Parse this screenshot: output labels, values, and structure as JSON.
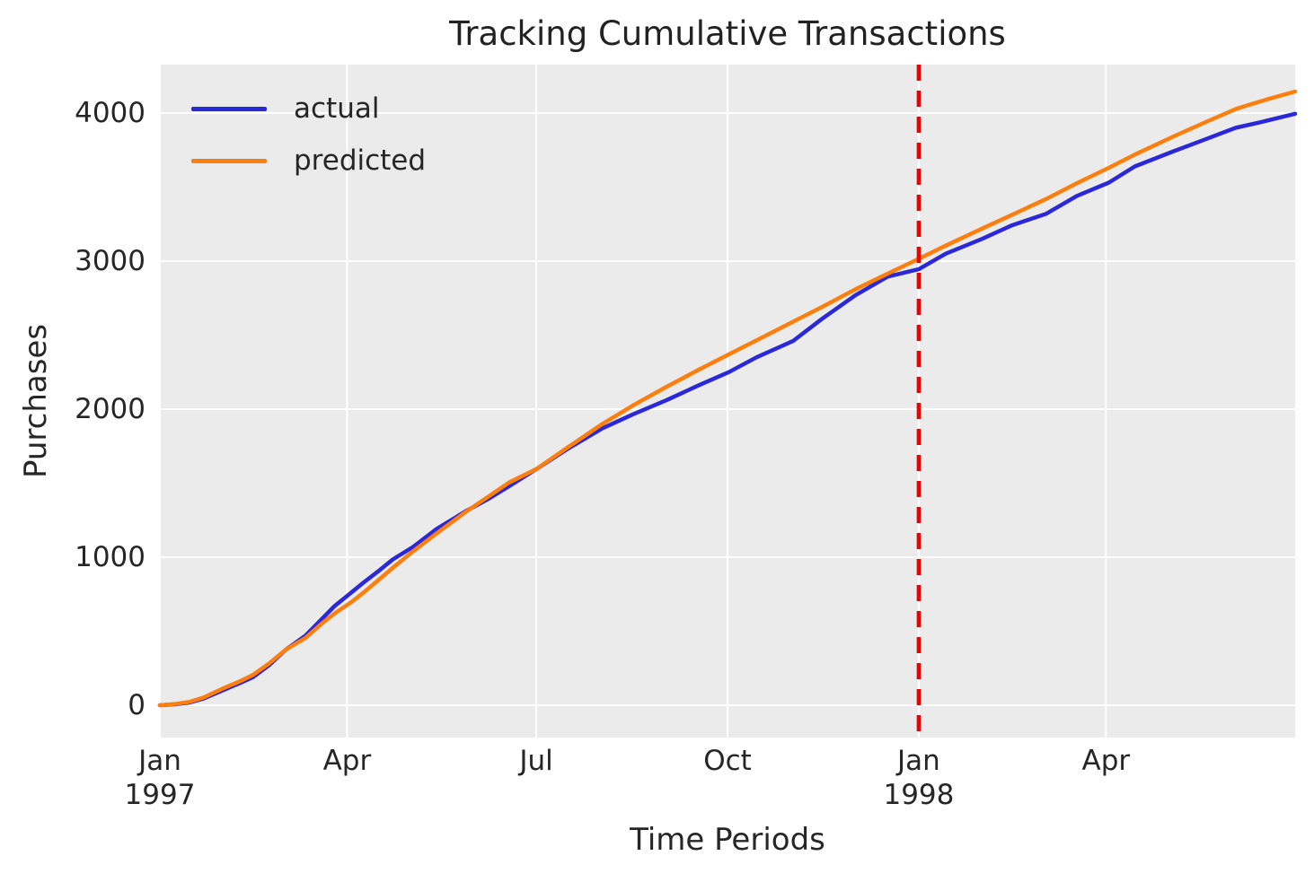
{
  "chart_data": {
    "type": "line",
    "title": "Tracking Cumulative Transactions",
    "xlabel": "Time Periods",
    "ylabel": "Purchases",
    "x_unit": "weeks since Jan 1997",
    "xlim_weeks": [
      0,
      78
    ],
    "ylim": [
      -218,
      4327
    ],
    "grid": true,
    "plot_bg_color": "#ebebeb",
    "grid_color": "#ffffff",
    "text_color": "#262626",
    "yticks": {
      "values": [
        0,
        1000,
        2000,
        3000,
        4000
      ],
      "labels": [
        "0",
        "1000",
        "2000",
        "3000",
        "4000"
      ]
    },
    "xticks": [
      {
        "week": 0,
        "label": "Jan",
        "year": "1997"
      },
      {
        "week": 12.86,
        "label": "Apr",
        "year": ""
      },
      {
        "week": 25.86,
        "label": "Jul",
        "year": ""
      },
      {
        "week": 39.0,
        "label": "Oct",
        "year": ""
      },
      {
        "week": 52.14,
        "label": "Jan",
        "year": "1998"
      },
      {
        "week": 65.0,
        "label": "Apr",
        "year": ""
      }
    ],
    "cutoff_line": {
      "week": 52.14,
      "color": "#ee0000",
      "style": "dashed"
    },
    "legend": {
      "position": "upper left"
    },
    "series": [
      {
        "name": "actual",
        "color": "#2a28d9",
        "points_week_value": [
          [
            0,
            0
          ],
          [
            1,
            6
          ],
          [
            2,
            18
          ],
          [
            3,
            45
          ],
          [
            4.3,
            100
          ],
          [
            5.5,
            150
          ],
          [
            6.4,
            190
          ],
          [
            7.5,
            270
          ],
          [
            8.65,
            375
          ],
          [
            10,
            470
          ],
          [
            11.1,
            580
          ],
          [
            12,
            670
          ],
          [
            13.2,
            765
          ],
          [
            14,
            830
          ],
          [
            15,
            905
          ],
          [
            16,
            985
          ],
          [
            17.4,
            1070
          ],
          [
            19,
            1190
          ],
          [
            21,
            1310
          ],
          [
            22.5,
            1390
          ],
          [
            24,
            1480
          ],
          [
            25.86,
            1595
          ],
          [
            28,
            1730
          ],
          [
            30.4,
            1870
          ],
          [
            32.5,
            1965
          ],
          [
            34.8,
            2060
          ],
          [
            37,
            2160
          ],
          [
            39.1,
            2250
          ],
          [
            41,
            2350
          ],
          [
            43.5,
            2460
          ],
          [
            45.5,
            2610
          ],
          [
            47.8,
            2770
          ],
          [
            50,
            2895
          ],
          [
            52.14,
            2945
          ],
          [
            54,
            3050
          ],
          [
            56.5,
            3150
          ],
          [
            58.5,
            3240
          ],
          [
            60.9,
            3320
          ],
          [
            63,
            3440
          ],
          [
            65.2,
            3530
          ],
          [
            67,
            3640
          ],
          [
            69.6,
            3740
          ],
          [
            71.5,
            3810
          ],
          [
            73.9,
            3900
          ],
          [
            75.5,
            3935
          ],
          [
            78,
            3995
          ]
        ]
      },
      {
        "name": "predicted",
        "color": "#ff7f0e",
        "points_week_value": [
          [
            0,
            0
          ],
          [
            1,
            8
          ],
          [
            2,
            22
          ],
          [
            3,
            52
          ],
          [
            4.3,
            112
          ],
          [
            5.5,
            162
          ],
          [
            6.4,
            205
          ],
          [
            7.5,
            282
          ],
          [
            8.65,
            375
          ],
          [
            10,
            455
          ],
          [
            11.1,
            550
          ],
          [
            12,
            620
          ],
          [
            13.2,
            700
          ],
          [
            14,
            762
          ],
          [
            15,
            845
          ],
          [
            16,
            928
          ],
          [
            17.4,
            1040
          ],
          [
            19,
            1160
          ],
          [
            21,
            1305
          ],
          [
            22.5,
            1405
          ],
          [
            24,
            1505
          ],
          [
            25.86,
            1595
          ],
          [
            28,
            1740
          ],
          [
            30.4,
            1900
          ],
          [
            32.5,
            2025
          ],
          [
            34.8,
            2150
          ],
          [
            37,
            2265
          ],
          [
            39.1,
            2370
          ],
          [
            41,
            2465
          ],
          [
            43.5,
            2590
          ],
          [
            45.5,
            2690
          ],
          [
            47.8,
            2810
          ],
          [
            50,
            2915
          ],
          [
            52.14,
            3015
          ],
          [
            54,
            3105
          ],
          [
            56.5,
            3220
          ],
          [
            58.5,
            3310
          ],
          [
            60.9,
            3420
          ],
          [
            63,
            3525
          ],
          [
            65.2,
            3630
          ],
          [
            67,
            3720
          ],
          [
            69.6,
            3840
          ],
          [
            72,
            3945
          ],
          [
            74,
            4030
          ],
          [
            76,
            4090
          ],
          [
            78,
            4145
          ]
        ]
      }
    ]
  }
}
